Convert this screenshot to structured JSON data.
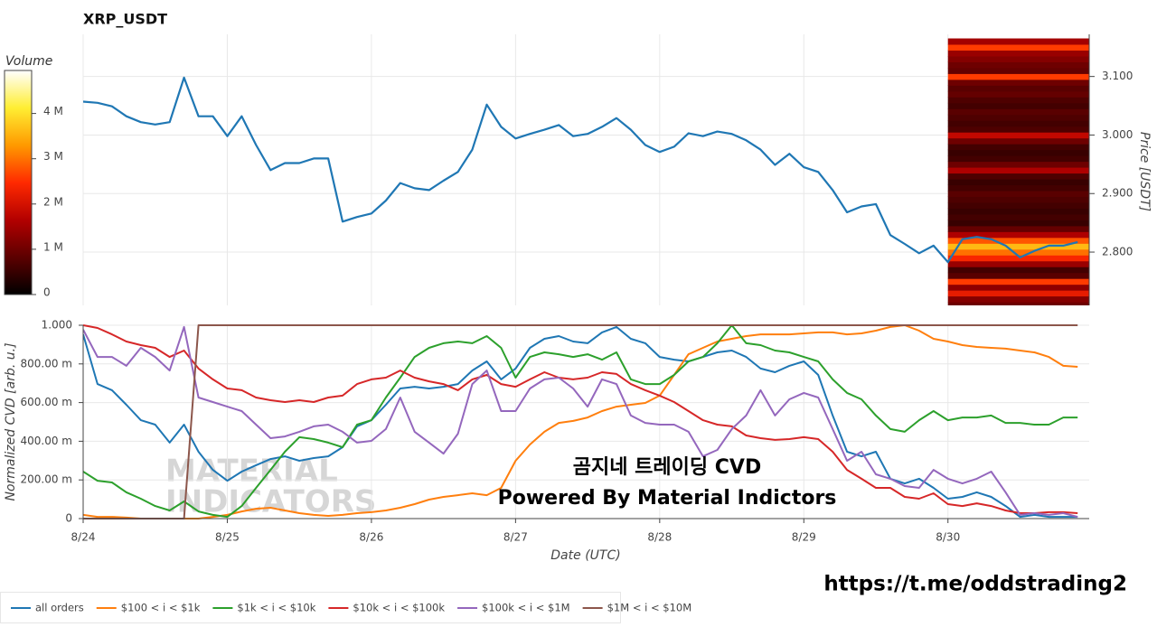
{
  "chart_data": [
    {
      "type": "line",
      "title": "XRP_USDT",
      "ylabel": "Price [USDT]",
      "color": "#1f77b4",
      "x": [
        0,
        0.1,
        0.2,
        0.3,
        0.4,
        0.5,
        0.6,
        0.7,
        0.8,
        0.9,
        1,
        1.1,
        1.2,
        1.3,
        1.4,
        1.5,
        1.6,
        1.7,
        1.8,
        1.9,
        2,
        2.1,
        2.2,
        2.3,
        2.4,
        2.5,
        2.6,
        2.7,
        2.8,
        2.9,
        3,
        3.1,
        3.2,
        3.3,
        3.4,
        3.5,
        3.6,
        3.7,
        3.8,
        3.9,
        4,
        4.1,
        4.2,
        4.3,
        4.4,
        4.5,
        4.6,
        4.7,
        4.8,
        4.9,
        5,
        5.1,
        5.2,
        5.3,
        5.4,
        5.5,
        5.6,
        5.7,
        5.8,
        5.9,
        6,
        6.1,
        6.2,
        6.3,
        6.4,
        6.5,
        6.6,
        6.7,
        6.8,
        6.9
      ],
      "values": [
        3.057,
        3.055,
        3.049,
        3.032,
        3.022,
        3.018,
        3.022,
        3.098,
        3.032,
        3.032,
        2.998,
        3.032,
        2.983,
        2.94,
        2.952,
        2.952,
        2.96,
        2.96,
        2.852,
        2.86,
        2.866,
        2.888,
        2.918,
        2.909,
        2.906,
        2.922,
        2.937,
        2.975,
        3.052,
        3.014,
        2.994,
        3.002,
        3.009,
        3.017,
        2.998,
        3.002,
        3.014,
        3.029,
        3.009,
        2.983,
        2.971,
        2.98,
        3.003,
        2.998,
        3.006,
        3.002,
        2.991,
        2.975,
        2.949,
        2.968,
        2.945,
        2.937,
        2.906,
        2.868,
        2.878,
        2.882,
        2.829,
        2.814,
        2.798,
        2.811,
        2.783,
        2.822,
        2.826,
        2.822,
        2.811,
        2.791,
        2.802,
        2.811,
        2.811,
        2.817
      ],
      "ylim": [
        2.709,
        3.172
      ],
      "yticks": [
        {
          "value": 2.8,
          "label": "2.800"
        },
        {
          "value": 2.9,
          "label": "2.900"
        },
        {
          "value": 3.0,
          "label": "3.000"
        },
        {
          "value": 3.1,
          "label": "3.100"
        }
      ],
      "grid": true,
      "heatmap": {
        "title": "Volume",
        "xrange": [
          6,
          6.98
        ],
        "prices": [
          2.71,
          2.72,
          2.73,
          2.74,
          2.75,
          2.76,
          2.77,
          2.78,
          2.79,
          2.8,
          2.81,
          2.82,
          2.83,
          2.84,
          2.85,
          2.86,
          2.87,
          2.88,
          2.89,
          2.9,
          2.91,
          2.92,
          2.93,
          2.94,
          2.95,
          2.96,
          2.97,
          2.98,
          2.99,
          3.0,
          3.01,
          3.02,
          3.03,
          3.04,
          3.05,
          3.06,
          3.07,
          3.08,
          3.09,
          3.1,
          3.11,
          3.12,
          3.13,
          3.14,
          3.15,
          3.16
        ],
        "volumes": [
          1000000,
          1200000,
          2200000,
          1300000,
          2600000,
          800000,
          600000,
          1400000,
          2400000,
          3000000,
          3600000,
          2800000,
          1600000,
          900000,
          500000,
          600000,
          500000,
          600000,
          700000,
          800000,
          600000,
          500000,
          700000,
          1600000,
          1000000,
          600000,
          500000,
          600000,
          1000000,
          1800000,
          700000,
          600000,
          700000,
          800000,
          600000,
          700000,
          900000,
          800000,
          1000000,
          2600000,
          900000,
          1000000,
          1200000,
          1400000,
          2600000,
          1500000
        ],
        "colorscale": [
          "#000000",
          "#5c0000",
          "#b30000",
          "#ff2a00",
          "#ff9a00",
          "#ffee33",
          "#ffffff"
        ],
        "vlim": [
          0,
          4950000
        ],
        "vticks": [
          0,
          {
            "value": 1000000,
            "label": "1 M"
          },
          {
            "value": 2000000,
            "label": "2 M"
          },
          {
            "value": 3000000,
            "label": "3 M"
          },
          {
            "value": 4000000,
            "label": "4 M"
          }
        ]
      }
    },
    {
      "type": "line",
      "xlabel": "Date (UTC)",
      "ylabel": "Normalized CVD [arb. u.]",
      "x": [
        0,
        0.1,
        0.2,
        0.3,
        0.4,
        0.5,
        0.6,
        0.7,
        0.8,
        0.9,
        1,
        1.1,
        1.2,
        1.3,
        1.4,
        1.5,
        1.6,
        1.7,
        1.8,
        1.9,
        2,
        2.1,
        2.2,
        2.3,
        2.4,
        2.5,
        2.6,
        2.7,
        2.8,
        2.9,
        3,
        3.1,
        3.2,
        3.3,
        3.4,
        3.5,
        3.6,
        3.7,
        3.8,
        3.9,
        4,
        4.1,
        4.2,
        4.3,
        4.4,
        4.5,
        4.6,
        4.7,
        4.8,
        4.9,
        5,
        5.1,
        5.2,
        5.3,
        5.4,
        5.5,
        5.6,
        5.7,
        5.8,
        5.9,
        6,
        6.1,
        6.2,
        6.3,
        6.4,
        6.5,
        6.6,
        6.7,
        6.8,
        6.9
      ],
      "xlim": [
        0,
        6.98
      ],
      "xticks": [
        {
          "value": 0,
          "label": "8/24"
        },
        {
          "value": 1,
          "label": "8/25"
        },
        {
          "value": 2,
          "label": "8/26"
        },
        {
          "value": 3,
          "label": "8/27"
        },
        {
          "value": 4,
          "label": "8/28"
        },
        {
          "value": 5,
          "label": "8/29"
        },
        {
          "value": 6,
          "label": "8/30"
        }
      ],
      "ylim": [
        0,
        1
      ],
      "yticks": [
        0,
        {
          "value": 0.2,
          "label": "200.00 m"
        },
        {
          "value": 0.4,
          "label": "400.00 m"
        },
        {
          "value": 0.6,
          "label": "600.00 m"
        },
        {
          "value": 0.8,
          "label": "800.00 m"
        },
        {
          "value": 1,
          "label": "1.000"
        }
      ],
      "grid": true,
      "series": [
        {
          "name": "all orders",
          "color": "#1f77b4",
          "values": [
            0.953,
            0.696,
            0.664,
            0.589,
            0.509,
            0.486,
            0.393,
            0.486,
            0.346,
            0.252,
            0.196,
            0.243,
            0.276,
            0.308,
            0.322,
            0.299,
            0.313,
            0.322,
            0.369,
            0.477,
            0.509,
            0.589,
            0.673,
            0.682,
            0.673,
            0.682,
            0.696,
            0.766,
            0.813,
            0.72,
            0.776,
            0.883,
            0.93,
            0.944,
            0.916,
            0.907,
            0.963,
            0.991,
            0.93,
            0.907,
            0.836,
            0.822,
            0.813,
            0.836,
            0.86,
            0.869,
            0.836,
            0.776,
            0.757,
            0.79,
            0.813,
            0.743,
            0.533,
            0.346,
            0.322,
            0.346,
            0.206,
            0.182,
            0.206,
            0.159,
            0.103,
            0.112,
            0.136,
            0.112,
            0.065,
            0.009,
            0.019,
            0.009,
            0.009,
            0.009
          ]
        },
        {
          "name": "$100 < i < $1k",
          "color": "#ff7f0e",
          "values": [
            0.019,
            0.009,
            0.009,
            0.005,
            0,
            0,
            0,
            0,
            0,
            0.009,
            0.019,
            0.037,
            0.051,
            0.056,
            0.042,
            0.028,
            0.019,
            0.014,
            0.019,
            0.028,
            0.033,
            0.042,
            0.056,
            0.075,
            0.098,
            0.112,
            0.121,
            0.131,
            0.121,
            0.159,
            0.299,
            0.383,
            0.449,
            0.495,
            0.505,
            0.523,
            0.556,
            0.579,
            0.589,
            0.598,
            0.636,
            0.743,
            0.85,
            0.883,
            0.916,
            0.93,
            0.944,
            0.953,
            0.953,
            0.953,
            0.958,
            0.963,
            0.963,
            0.953,
            0.958,
            0.972,
            0.991,
            1,
            0.972,
            0.93,
            0.916,
            0.897,
            0.888,
            0.883,
            0.879,
            0.869,
            0.86,
            0.836,
            0.79,
            0.785
          ]
        },
        {
          "name": "$1k < i < $10k",
          "color": "#2ca02c",
          "values": [
            0.243,
            0.196,
            0.187,
            0.136,
            0.103,
            0.065,
            0.042,
            0.089,
            0.037,
            0.019,
            0.009,
            0.065,
            0.159,
            0.252,
            0.346,
            0.421,
            0.411,
            0.393,
            0.369,
            0.486,
            0.509,
            0.626,
            0.729,
            0.836,
            0.883,
            0.907,
            0.916,
            0.907,
            0.944,
            0.883,
            0.729,
            0.836,
            0.86,
            0.85,
            0.836,
            0.85,
            0.822,
            0.86,
            0.72,
            0.696,
            0.696,
            0.743,
            0.813,
            0.836,
            0.907,
            1,
            0.907,
            0.897,
            0.869,
            0.86,
            0.836,
            0.813,
            0.72,
            0.65,
            0.617,
            0.533,
            0.463,
            0.449,
            0.509,
            0.556,
            0.509,
            0.523,
            0.523,
            0.533,
            0.495,
            0.495,
            0.486,
            0.486,
            0.523,
            0.523
          ]
        },
        {
          "name": "$10k < i < $100k",
          "color": "#d62728",
          "values": [
            1,
            0.986,
            0.953,
            0.916,
            0.897,
            0.883,
            0.836,
            0.869,
            0.776,
            0.72,
            0.673,
            0.664,
            0.626,
            0.612,
            0.603,
            0.612,
            0.603,
            0.626,
            0.636,
            0.696,
            0.72,
            0.729,
            0.766,
            0.729,
            0.71,
            0.696,
            0.664,
            0.72,
            0.743,
            0.696,
            0.682,
            0.72,
            0.757,
            0.729,
            0.72,
            0.729,
            0.757,
            0.748,
            0.696,
            0.664,
            0.636,
            0.603,
            0.556,
            0.509,
            0.486,
            0.477,
            0.43,
            0.416,
            0.407,
            0.411,
            0.421,
            0.411,
            0.346,
            0.252,
            0.206,
            0.159,
            0.159,
            0.112,
            0.103,
            0.131,
            0.075,
            0.065,
            0.079,
            0.065,
            0.042,
            0.028,
            0.028,
            0.033,
            0.033,
            0.028
          ]
        },
        {
          "name": "$100k < i < $1M",
          "color": "#9467bd",
          "values": [
            0.977,
            0.836,
            0.836,
            0.79,
            0.883,
            0.836,
            0.766,
            0.991,
            0.626,
            0.603,
            0.579,
            0.556,
            0.486,
            0.416,
            0.425,
            0.449,
            0.477,
            0.486,
            0.449,
            0.393,
            0.402,
            0.463,
            0.626,
            0.449,
            0.393,
            0.336,
            0.439,
            0.696,
            0.766,
            0.556,
            0.556,
            0.673,
            0.72,
            0.729,
            0.673,
            0.579,
            0.72,
            0.696,
            0.533,
            0.495,
            0.486,
            0.486,
            0.449,
            0.322,
            0.355,
            0.463,
            0.533,
            0.664,
            0.533,
            0.617,
            0.65,
            0.626,
            0.463,
            0.299,
            0.346,
            0.229,
            0.206,
            0.168,
            0.159,
            0.252,
            0.206,
            0.182,
            0.206,
            0.243,
            0.136,
            0.019,
            0.028,
            0.019,
            0.028,
            0.009
          ]
        },
        {
          "name": "$1M < i < $10M",
          "color": "#8c564b",
          "values": [
            0,
            0,
            0,
            0,
            0,
            0,
            0,
            0,
            1,
            1,
            1,
            1,
            1,
            1,
            1,
            1,
            1,
            1,
            1,
            1,
            1,
            1,
            1,
            1,
            1,
            1,
            1,
            1,
            1,
            1,
            1,
            1,
            1,
            1,
            1,
            1,
            1,
            1,
            1,
            1,
            1,
            1,
            1,
            1,
            1,
            1,
            1,
            1,
            1,
            1,
            1,
            1,
            1,
            1,
            1,
            1,
            1,
            1,
            1,
            1,
            1,
            1,
            1,
            1,
            1,
            1,
            1,
            1,
            1,
            1
          ]
        }
      ],
      "watermark": [
        "MATERIAL",
        "INDICATORS"
      ],
      "annotations": [
        "곰지네 트레이딩 CVD",
        "Powered By Material Indictors"
      ],
      "credit": "https://t.me/oddstrading2"
    }
  ]
}
